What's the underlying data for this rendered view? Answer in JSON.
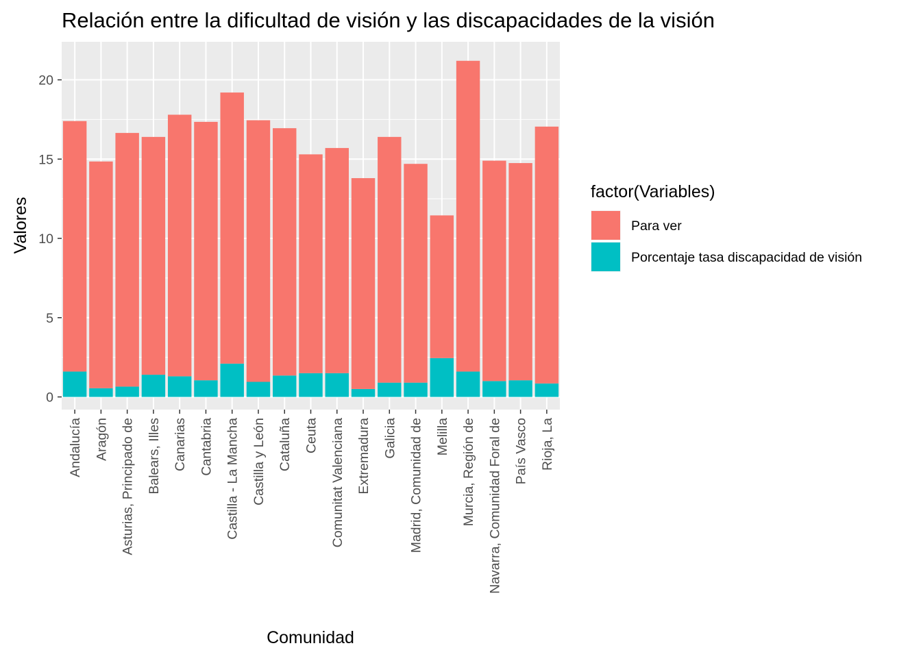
{
  "chart_data": {
    "type": "bar",
    "stacked": true,
    "title": "Relación entre la dificultad de visión y las discapacidades de la visión",
    "xlabel": "Comunidad",
    "ylabel": "Valores",
    "ylim": [
      -0.8,
      22.4
    ],
    "yticks": [
      0,
      5,
      10,
      15,
      20
    ],
    "grid": true,
    "legend": {
      "title": "factor(Variables)",
      "position": "right"
    },
    "categories": [
      "Andalucía",
      "Aragón",
      "Asturias, Principado de",
      "Balears, Illes",
      "Canarias",
      "Cantabria",
      "Castilla - La Mancha",
      "Castilla y León",
      "Cataluña",
      "Ceuta",
      "Comunitat Valenciana",
      "Extremadura",
      "Galicia",
      "Madrid, Comunidad de",
      "Melilla",
      "Murcia, Región de",
      "Navarra, Comunidad Foral de",
      "País Vasco",
      "Rioja, La"
    ],
    "series": [
      {
        "name": "Para ver",
        "color": "#F8766D",
        "values": [
          15.8,
          14.3,
          16.0,
          15.0,
          16.5,
          16.3,
          17.1,
          16.5,
          15.6,
          13.8,
          14.2,
          13.3,
          15.5,
          13.8,
          9.0,
          19.6,
          13.9,
          13.7,
          16.2
        ]
      },
      {
        "name": "Porcentaje tasa discapacidad de visión",
        "color": "#00BFC4",
        "values": [
          1.6,
          0.55,
          0.65,
          1.4,
          1.3,
          1.05,
          2.1,
          0.95,
          1.35,
          1.5,
          1.5,
          0.5,
          0.9,
          0.9,
          2.45,
          1.6,
          1.0,
          1.05,
          0.85
        ]
      }
    ]
  }
}
